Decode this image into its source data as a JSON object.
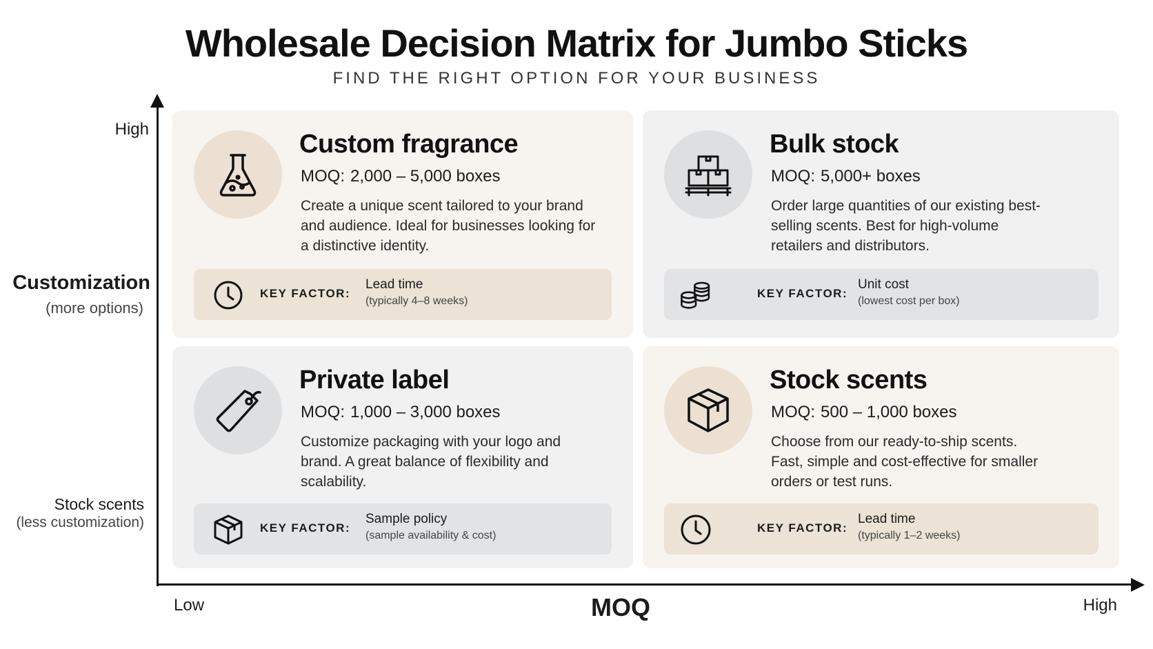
{
  "title": "Wholesale Decision Matrix for Jumbo Sticks",
  "subtitle": "FIND THE RIGHT OPTION FOR YOUR BUSINESS",
  "y_axis": {
    "high": "High",
    "title": "Customization",
    "subtitle": "(more options)",
    "low": "Stock scents",
    "low_sub": "(less customization)"
  },
  "x_axis": {
    "low": "Low",
    "title": "MOQ",
    "high": "High"
  },
  "quadrants": {
    "top_left": {
      "icon": "flask-icon",
      "title": "Custom fragrance",
      "moq_label": "MOQ:",
      "moq_value": "2,000 – 5,000 boxes",
      "description": "Create a unique scent tailored to your brand and audience. Ideal for businesses looking for a distinctive identity.",
      "key_icon": "clock-icon",
      "key_label": "KEY FACTOR:",
      "key_value": "Lead time",
      "key_note": "(typically 4–8 weeks)"
    },
    "top_right": {
      "icon": "pallet-boxes-icon",
      "title": "Bulk stock",
      "moq_label": "MOQ:",
      "moq_value": "5,000+ boxes",
      "description": "Order large quantities of our existing best-selling scents. Best for high-volume retailers and distributors.",
      "key_icon": "coins-icon",
      "key_label": "KEY FACTOR:",
      "key_value": "Unit cost",
      "key_note": "(lowest cost per box)"
    },
    "bottom_left": {
      "icon": "tag-icon",
      "title": "Private label",
      "moq_label": "MOQ:",
      "moq_value": "1,000 – 3,000 boxes",
      "description": "Customize packaging with your logo and brand. A great balance of flexibility and scalability.",
      "key_icon": "box-icon",
      "key_label": "KEY FACTOR:",
      "key_value": "Sample policy",
      "key_note": "(sample availability & cost)"
    },
    "bottom_right": {
      "icon": "box-icon",
      "title": "Stock scents",
      "moq_label": "MOQ:",
      "moq_value": "500 – 1,000 boxes",
      "description": "Choose from our ready-to-ship scents. Fast, simple and cost-effective for smaller orders or test runs.",
      "key_icon": "clock-icon",
      "key_label": "KEY FACTOR:",
      "key_value": "Lead time",
      "key_note": "(typically 1–2 weeks)"
    }
  }
}
